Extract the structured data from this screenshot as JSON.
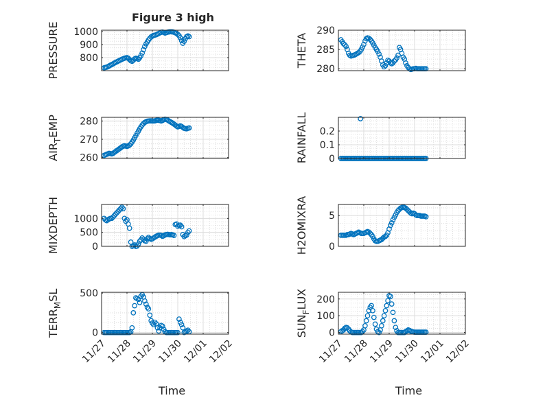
{
  "title": "Figure 3 high",
  "xlabel": "Time",
  "xticks": [
    "11/27",
    "11/28",
    "11/29",
    "11/30",
    "12/01",
    "12/02"
  ],
  "marker_color": "#0072BD",
  "chart_data": [
    {
      "type": "scatter",
      "ylabel": "PRESSURE",
      "ylim": [
        700,
        1010
      ],
      "yticks": [
        {
          "v": 800,
          "label": "800"
        },
        {
          "v": 900,
          "label": "900"
        },
        {
          "v": 1000,
          "label": "1000"
        }
      ],
      "x": [
        0.1,
        0.15,
        0.2,
        0.25,
        0.3,
        0.35,
        0.4,
        0.45,
        0.5,
        0.55,
        0.6,
        0.65,
        0.7,
        0.75,
        0.8,
        0.85,
        0.9,
        0.95,
        1.0,
        1.05,
        1.1,
        1.15,
        1.2,
        1.25,
        1.3,
        1.35,
        1.4,
        1.45,
        1.5,
        1.55,
        1.6,
        1.65,
        1.7,
        1.75,
        1.8,
        1.85,
        1.9,
        1.95,
        2.0,
        2.05,
        2.1,
        2.15,
        2.2,
        2.25,
        2.3,
        2.35,
        2.4,
        2.45,
        2.5,
        2.55,
        2.6,
        2.65,
        2.7,
        2.75,
        2.8,
        2.85,
        2.9,
        2.95,
        3.0,
        3.05,
        3.1,
        3.15,
        3.2,
        3.25,
        3.3,
        3.35,
        3.4,
        3.45
      ],
      "y": [
        722,
        724,
        727,
        731,
        736,
        742,
        747,
        752,
        758,
        763,
        768,
        773,
        778,
        782,
        787,
        791,
        795,
        798,
        800,
        795,
        785,
        776,
        772,
        780,
        790,
        795,
        792,
        788,
        800,
        815,
        835,
        860,
        885,
        905,
        920,
        935,
        948,
        958,
        965,
        970,
        972,
        975,
        980,
        985,
        990,
        994,
        996,
        992,
        988,
        992,
        995,
        997,
        998,
        998,
        997,
        994,
        990,
        985,
        978,
        968,
        952,
        930,
        910,
        925,
        945,
        960,
        966,
        960
      ]
    },
    {
      "type": "scatter",
      "ylabel": "THETA",
      "ylim": [
        279.5,
        290
      ],
      "yticks": [
        {
          "v": 280,
          "label": "280"
        },
        {
          "v": 285,
          "label": "285"
        },
        {
          "v": 290,
          "label": "290"
        }
      ],
      "x": [
        0.1,
        0.15,
        0.2,
        0.25,
        0.3,
        0.35,
        0.4,
        0.45,
        0.5,
        0.55,
        0.6,
        0.65,
        0.7,
        0.75,
        0.8,
        0.85,
        0.9,
        0.95,
        1.0,
        1.05,
        1.1,
        1.15,
        1.2,
        1.25,
        1.3,
        1.35,
        1.4,
        1.45,
        1.5,
        1.55,
        1.6,
        1.65,
        1.7,
        1.75,
        1.8,
        1.85,
        1.9,
        1.95,
        2.0,
        2.05,
        2.1,
        2.15,
        2.2,
        2.25,
        2.3,
        2.35,
        2.4,
        2.45,
        2.5,
        2.55,
        2.6,
        2.65,
        2.7,
        2.75,
        2.8,
        2.85,
        2.9,
        2.95,
        3.0,
        3.05,
        3.1,
        3.15,
        3.2,
        3.25,
        3.3,
        3.35,
        3.4,
        3.45
      ],
      "y": [
        287.5,
        287.0,
        286.5,
        286.2,
        285.8,
        285.0,
        284.0,
        283.5,
        283.3,
        283.4,
        283.5,
        283.6,
        283.8,
        284.0,
        284.2,
        284.5,
        285.0,
        285.6,
        286.3,
        287.2,
        287.8,
        288.0,
        287.9,
        287.6,
        287.2,
        286.7,
        286.1,
        285.5,
        285.0,
        284.5,
        283.8,
        283.0,
        282.0,
        281.0,
        280.5,
        280.8,
        281.5,
        282.2,
        282.0,
        281.5,
        281.3,
        281.5,
        282.0,
        282.3,
        282.8,
        283.5,
        285.5,
        285.0,
        284.0,
        283.0,
        282.5,
        281.5,
        280.8,
        280.3,
        280.0,
        279.8,
        279.9,
        280.0,
        280.0,
        280.1,
        280.0,
        280.0,
        280.0,
        280.0,
        280.0,
        280.0,
        280.0,
        280.0
      ]
    },
    {
      "type": "scatter",
      "ylabel": "AIR_TEMP",
      "ylim": [
        259.5,
        282
      ],
      "yticks": [
        {
          "v": 260,
          "label": "260"
        },
        {
          "v": 270,
          "label": "270"
        },
        {
          "v": 280,
          "label": "280"
        }
      ],
      "x": [
        0.1,
        0.15,
        0.2,
        0.25,
        0.3,
        0.35,
        0.4,
        0.45,
        0.5,
        0.55,
        0.6,
        0.65,
        0.7,
        0.75,
        0.8,
        0.85,
        0.9,
        0.95,
        1.0,
        1.05,
        1.1,
        1.15,
        1.2,
        1.25,
        1.3,
        1.35,
        1.4,
        1.45,
        1.5,
        1.55,
        1.6,
        1.65,
        1.7,
        1.75,
        1.8,
        1.85,
        1.9,
        1.95,
        2.0,
        2.05,
        2.1,
        2.15,
        2.2,
        2.25,
        2.3,
        2.35,
        2.4,
        2.45,
        2.5,
        2.55,
        2.6,
        2.65,
        2.7,
        2.75,
        2.8,
        2.85,
        2.9,
        2.95,
        3.0,
        3.05,
        3.1,
        3.15,
        3.2,
        3.25,
        3.3,
        3.35,
        3.4,
        3.45
      ],
      "y": [
        261.2,
        261.5,
        261.8,
        262.1,
        262.3,
        262.2,
        262.0,
        262.3,
        262.8,
        263.3,
        263.8,
        264.3,
        264.8,
        265.3,
        265.8,
        266.2,
        266.5,
        266.3,
        266.1,
        266.4,
        266.8,
        267.5,
        268.5,
        269.6,
        270.8,
        272.0,
        273.3,
        274.5,
        275.7,
        276.8,
        277.8,
        278.6,
        279.2,
        279.6,
        279.9,
        280.0,
        280.1,
        280.1,
        280.0,
        280.0,
        280.1,
        280.3,
        280.5,
        280.4,
        280.2,
        280.0,
        280.3,
        280.7,
        281.0,
        280.8,
        280.5,
        280.0,
        279.6,
        279.2,
        278.8,
        278.3,
        277.8,
        277.2,
        276.8,
        277.0,
        277.4,
        277.0,
        276.5,
        276.0,
        275.8,
        275.7,
        276.0,
        276.2
      ]
    },
    {
      "type": "scatter",
      "ylabel": "RAINFALL",
      "ylim": [
        0,
        0.3
      ],
      "yticks": [
        {
          "v": 0,
          "label": "0"
        },
        {
          "v": 0.1,
          "label": "0.1"
        },
        {
          "v": 0.2,
          "label": "0.2"
        }
      ],
      "x": [
        0.1,
        0.15,
        0.2,
        0.25,
        0.3,
        0.35,
        0.4,
        0.45,
        0.5,
        0.55,
        0.6,
        0.65,
        0.7,
        0.75,
        0.8,
        0.85,
        0.9,
        0.95,
        1.0,
        1.05,
        1.1,
        1.15,
        1.2,
        1.25,
        1.3,
        1.35,
        1.4,
        1.45,
        1.5,
        1.55,
        1.6,
        1.65,
        1.7,
        1.75,
        1.8,
        1.85,
        1.9,
        1.95,
        2.0,
        2.05,
        2.1,
        2.15,
        2.2,
        2.25,
        2.3,
        2.35,
        2.4,
        2.45,
        2.5,
        2.55,
        2.6,
        2.65,
        2.7,
        2.75,
        2.8,
        2.85,
        2.9,
        2.95,
        3.0,
        3.05,
        3.1,
        3.15,
        3.2,
        3.25,
        3.3,
        3.35,
        3.4,
        3.45,
        0.87
      ],
      "y": [
        0,
        0,
        0,
        0,
        0,
        0,
        0,
        0,
        0,
        0,
        0,
        0,
        0,
        0,
        0,
        0,
        0,
        0,
        0,
        0,
        0,
        0,
        0,
        0,
        0,
        0,
        0,
        0,
        0,
        0,
        0,
        0,
        0,
        0,
        0,
        0,
        0,
        0,
        0,
        0,
        0,
        0,
        0,
        0,
        0,
        0,
        0,
        0,
        0,
        0,
        0,
        0,
        0,
        0,
        0,
        0,
        0,
        0,
        0,
        0,
        0,
        0,
        0,
        0,
        0,
        0,
        0,
        0,
        0.29
      ]
    },
    {
      "type": "scatter",
      "ylabel": "MIXDEPTH",
      "ylim": [
        0,
        1500
      ],
      "yticks": [
        {
          "v": 0,
          "label": "0"
        },
        {
          "v": 500,
          "label": "500"
        },
        {
          "v": 1000,
          "label": "1000"
        }
      ],
      "x": [
        0.1,
        0.15,
        0.2,
        0.25,
        0.3,
        0.35,
        0.4,
        0.45,
        0.5,
        0.55,
        0.6,
        0.65,
        0.7,
        0.75,
        0.8,
        0.85,
        0.9,
        0.95,
        1.0,
        1.05,
        1.1,
        1.15,
        1.2,
        1.25,
        1.3,
        1.35,
        1.4,
        1.45,
        1.5,
        1.55,
        1.6,
        1.65,
        1.7,
        1.75,
        1.8,
        1.85,
        1.9,
        1.95,
        2.0,
        2.05,
        2.1,
        2.15,
        2.2,
        2.25,
        2.3,
        2.35,
        2.4,
        2.45,
        2.5,
        2.55,
        2.6,
        2.65,
        2.7,
        2.75,
        2.8,
        2.85,
        2.9,
        2.95,
        3.0,
        3.05,
        3.1,
        3.15,
        3.2,
        3.25,
        3.3,
        3.35,
        3.4,
        3.45
      ],
      "y": [
        1000,
        950,
        920,
        950,
        980,
        1000,
        1000,
        1050,
        1100,
        1150,
        1200,
        1250,
        1300,
        1350,
        1400,
        1350,
        1000,
        900,
        950,
        800,
        650,
        150,
        0,
        20,
        50,
        0,
        10,
        80,
        180,
        230,
        300,
        250,
        200,
        180,
        270,
        320,
        280,
        250,
        270,
        300,
        330,
        360,
        380,
        400,
        400,
        390,
        360,
        380,
        410,
        420,
        430,
        420,
        410,
        420,
        410,
        390,
        780,
        800,
        720,
        750,
        760,
        700,
        420,
        350,
        380,
        400,
        500,
        550
      ]
    },
    {
      "type": "scatter",
      "ylabel": "H2OMIXRA",
      "ylim": [
        0,
        6.8
      ],
      "yticks": [
        {
          "v": 0,
          "label": "0"
        },
        {
          "v": 5,
          "label": "5"
        }
      ],
      "x": [
        0.1,
        0.15,
        0.2,
        0.25,
        0.3,
        0.35,
        0.4,
        0.45,
        0.5,
        0.55,
        0.6,
        0.65,
        0.7,
        0.75,
        0.8,
        0.85,
        0.9,
        0.95,
        1.0,
        1.05,
        1.1,
        1.15,
        1.2,
        1.25,
        1.3,
        1.35,
        1.4,
        1.45,
        1.5,
        1.55,
        1.6,
        1.65,
        1.7,
        1.75,
        1.8,
        1.85,
        1.9,
        1.95,
        2.0,
        2.05,
        2.1,
        2.15,
        2.2,
        2.25,
        2.3,
        2.35,
        2.4,
        2.45,
        2.5,
        2.55,
        2.6,
        2.65,
        2.7,
        2.75,
        2.8,
        2.85,
        2.9,
        2.95,
        3.0,
        3.05,
        3.1,
        3.15,
        3.2,
        3.25,
        3.3,
        3.35,
        3.4,
        3.45
      ],
      "y": [
        1.8,
        1.8,
        1.8,
        1.8,
        1.8,
        1.9,
        1.9,
        2.0,
        2.1,
        2.0,
        1.9,
        2.0,
        2.1,
        2.2,
        2.3,
        2.2,
        2.1,
        2.1,
        2.1,
        2.2,
        2.3,
        2.4,
        2.3,
        2.1,
        1.9,
        1.6,
        1.2,
        0.9,
        0.8,
        0.8,
        0.9,
        1.0,
        1.1,
        1.3,
        1.5,
        1.6,
        1.8,
        2.2,
        2.8,
        3.4,
        3.8,
        4.3,
        4.7,
        5.1,
        5.5,
        5.8,
        6.0,
        6.2,
        6.3,
        6.4,
        6.3,
        6.2,
        6.0,
        5.8,
        5.6,
        5.4,
        5.3,
        5.4,
        5.3,
        5.1,
        5.0,
        5.0,
        5.0,
        4.9,
        4.9,
        4.9,
        4.9,
        4.8
      ]
    },
    {
      "type": "scatter",
      "ylabel": "TERR_MSL",
      "ylim": [
        -20,
        510
      ],
      "yticks": [
        {
          "v": 0,
          "label": "0"
        },
        {
          "v": 500,
          "label": "500"
        }
      ],
      "x": [
        0.1,
        0.15,
        0.2,
        0.25,
        0.3,
        0.35,
        0.4,
        0.45,
        0.5,
        0.55,
        0.6,
        0.65,
        0.7,
        0.75,
        0.8,
        0.85,
        0.9,
        0.95,
        1.0,
        1.05,
        1.1,
        1.15,
        1.2,
        1.25,
        1.3,
        1.35,
        1.4,
        1.45,
        1.5,
        1.55,
        1.6,
        1.65,
        1.7,
        1.75,
        1.8,
        1.85,
        1.9,
        1.95,
        2.0,
        2.05,
        2.1,
        2.15,
        2.2,
        2.25,
        2.3,
        2.35,
        2.4,
        2.45,
        2.5,
        2.55,
        2.6,
        2.65,
        2.7,
        2.75,
        2.8,
        2.85,
        2.9,
        2.95,
        3.0,
        3.05,
        3.1,
        3.15,
        3.2,
        3.25,
        3.3,
        3.35,
        3.4,
        3.45
      ],
      "y": [
        0,
        0,
        0,
        0,
        0,
        0,
        0,
        0,
        0,
        0,
        0,
        0,
        0,
        0,
        0,
        0,
        0,
        0,
        0,
        0,
        0,
        10,
        60,
        250,
        340,
        440,
        430,
        420,
        380,
        460,
        480,
        450,
        400,
        360,
        320,
        300,
        220,
        150,
        120,
        100,
        130,
        110,
        60,
        20,
        60,
        90,
        80,
        40,
        10,
        0,
        0,
        0,
        0,
        0,
        0,
        0,
        0,
        0,
        0,
        170,
        130,
        100,
        60,
        0,
        10,
        20,
        30,
        10
      ]
    },
    {
      "type": "scatter",
      "ylabel": "SUN_FLUX",
      "ylim": [
        -10,
        240
      ],
      "yticks": [
        {
          "v": 0,
          "label": "0"
        },
        {
          "v": 100,
          "label": "100"
        },
        {
          "v": 200,
          "label": "200"
        }
      ],
      "x": [
        0.1,
        0.15,
        0.2,
        0.25,
        0.3,
        0.35,
        0.4,
        0.45,
        0.5,
        0.55,
        0.6,
        0.65,
        0.7,
        0.75,
        0.8,
        0.85,
        0.9,
        0.95,
        1.0,
        1.05,
        1.1,
        1.15,
        1.2,
        1.25,
        1.3,
        1.35,
        1.4,
        1.45,
        1.5,
        1.55,
        1.6,
        1.65,
        1.7,
        1.75,
        1.8,
        1.85,
        1.9,
        1.95,
        2.0,
        2.05,
        2.1,
        2.15,
        2.2,
        2.25,
        2.3,
        2.35,
        2.4,
        2.45,
        2.5,
        2.55,
        2.6,
        2.65,
        2.7,
        2.75,
        2.8,
        2.85,
        2.9,
        2.95,
        3.0,
        3.05,
        3.1,
        3.15,
        3.2,
        3.25,
        3.3,
        3.35,
        3.4,
        3.45
      ],
      "y": [
        5,
        10,
        15,
        25,
        30,
        28,
        20,
        10,
        3,
        0,
        0,
        0,
        0,
        0,
        0,
        0,
        0,
        5,
        15,
        40,
        70,
        100,
        130,
        150,
        160,
        130,
        90,
        50,
        20,
        5,
        0,
        15,
        40,
        70,
        100,
        130,
        160,
        190,
        220,
        215,
        170,
        120,
        70,
        30,
        10,
        0,
        0,
        0,
        0,
        0,
        0,
        5,
        10,
        15,
        12,
        8,
        5,
        3,
        2,
        2,
        2,
        2,
        2,
        2,
        2,
        2,
        2,
        2
      ]
    }
  ]
}
